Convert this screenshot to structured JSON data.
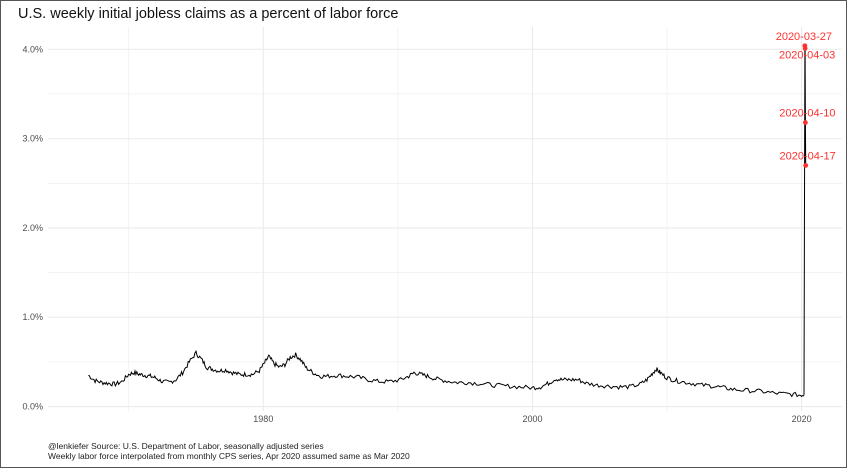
{
  "chart_data": {
    "type": "line",
    "title": "U.S. weekly initial jobless claims as a percent of labor force",
    "xlabel": "",
    "ylabel": "",
    "xlim": [
      1964,
      2023
    ],
    "ylim": [
      -0.05,
      4.25
    ],
    "x_ticks": [
      1980,
      2000,
      2020
    ],
    "x_tick_labels": [
      "1980",
      "2000",
      "2020"
    ],
    "y_ticks": [
      0,
      1,
      2,
      3,
      4
    ],
    "y_tick_labels": [
      "0.0%",
      "1.0%",
      "2.0%",
      "3.0%",
      "4.0%"
    ],
    "grid": true,
    "series": [
      {
        "x": [
          1967.0,
          1967.5,
          1968.0,
          1968.5,
          1969.0,
          1969.5,
          1970.0,
          1970.4,
          1970.8,
          1971.2,
          1971.6,
          1972.0,
          1972.5,
          1973.0,
          1973.5,
          1974.0,
          1974.5,
          1975.0,
          1975.4,
          1975.8,
          1976.2,
          1976.7,
          1977.2,
          1977.7,
          1978.2,
          1978.7,
          1979.2,
          1979.7,
          1980.1,
          1980.4,
          1980.8,
          1981.2,
          1981.6,
          1982.0,
          1982.4,
          1982.8,
          1983.2,
          1983.7,
          1984.2,
          1984.8,
          1985.5,
          1986.2,
          1987.0,
          1987.8,
          1988.6,
          1989.4,
          1990.2,
          1990.8,
          1991.2,
          1991.7,
          1992.2,
          1992.8,
          1993.5,
          1994.3,
          1995.1,
          1996.0,
          1997.0,
          1998.0,
          1999.0,
          2000.0,
          2000.6,
          2001.2,
          2001.7,
          2002.2,
          2002.8,
          2003.4,
          2004.0,
          2004.8,
          2005.6,
          2006.4,
          2007.2,
          2008.0,
          2008.5,
          2008.9,
          2009.2,
          2009.5,
          2009.9,
          2010.4,
          2011.0,
          2011.8,
          2012.6,
          2013.4,
          2014.2,
          2015.0,
          2016.0,
          2017.0,
          2018.0,
          2019.0,
          2019.8,
          2020.18
        ],
        "values": [
          0.35,
          0.29,
          0.27,
          0.26,
          0.25,
          0.28,
          0.36,
          0.38,
          0.36,
          0.35,
          0.34,
          0.32,
          0.28,
          0.27,
          0.3,
          0.38,
          0.5,
          0.6,
          0.53,
          0.44,
          0.42,
          0.4,
          0.41,
          0.38,
          0.36,
          0.36,
          0.36,
          0.4,
          0.49,
          0.56,
          0.48,
          0.44,
          0.47,
          0.55,
          0.58,
          0.52,
          0.43,
          0.38,
          0.34,
          0.34,
          0.35,
          0.34,
          0.33,
          0.3,
          0.28,
          0.28,
          0.3,
          0.34,
          0.38,
          0.36,
          0.34,
          0.31,
          0.29,
          0.27,
          0.27,
          0.26,
          0.24,
          0.23,
          0.22,
          0.21,
          0.22,
          0.26,
          0.31,
          0.3,
          0.3,
          0.3,
          0.26,
          0.24,
          0.23,
          0.22,
          0.22,
          0.25,
          0.3,
          0.37,
          0.42,
          0.38,
          0.33,
          0.3,
          0.28,
          0.26,
          0.24,
          0.23,
          0.21,
          0.19,
          0.18,
          0.17,
          0.15,
          0.14,
          0.13,
          0.13
        ]
      },
      {
        "x": [
          2020.18,
          2020.24,
          2020.26,
          2020.28,
          2020.3
        ],
        "values": [
          0.13,
          4.04,
          4.01,
          3.18,
          2.7
        ]
      }
    ],
    "annotations": [
      {
        "label": "2020-03-27",
        "x": 2020.24,
        "y": 4.04
      },
      {
        "label": "2020-04-03",
        "x": 2020.26,
        "y": 4.01
      },
      {
        "label": "2020-04-10",
        "x": 2020.28,
        "y": 3.18
      },
      {
        "label": "2020-04-17",
        "x": 2020.3,
        "y": 2.7
      }
    ]
  },
  "caption_lines": [
    "@lenkiefer Source: U.S. Department of Labor, seasonally adjusted series",
    "Weekly labor force interpolated from monthly CPS series, Apr 2020 assumed same as Mar 2020"
  ],
  "colors": {
    "line": "#000000",
    "annotation": "#ff3030",
    "grid": "#ebebeb",
    "background": "#ffffff"
  }
}
